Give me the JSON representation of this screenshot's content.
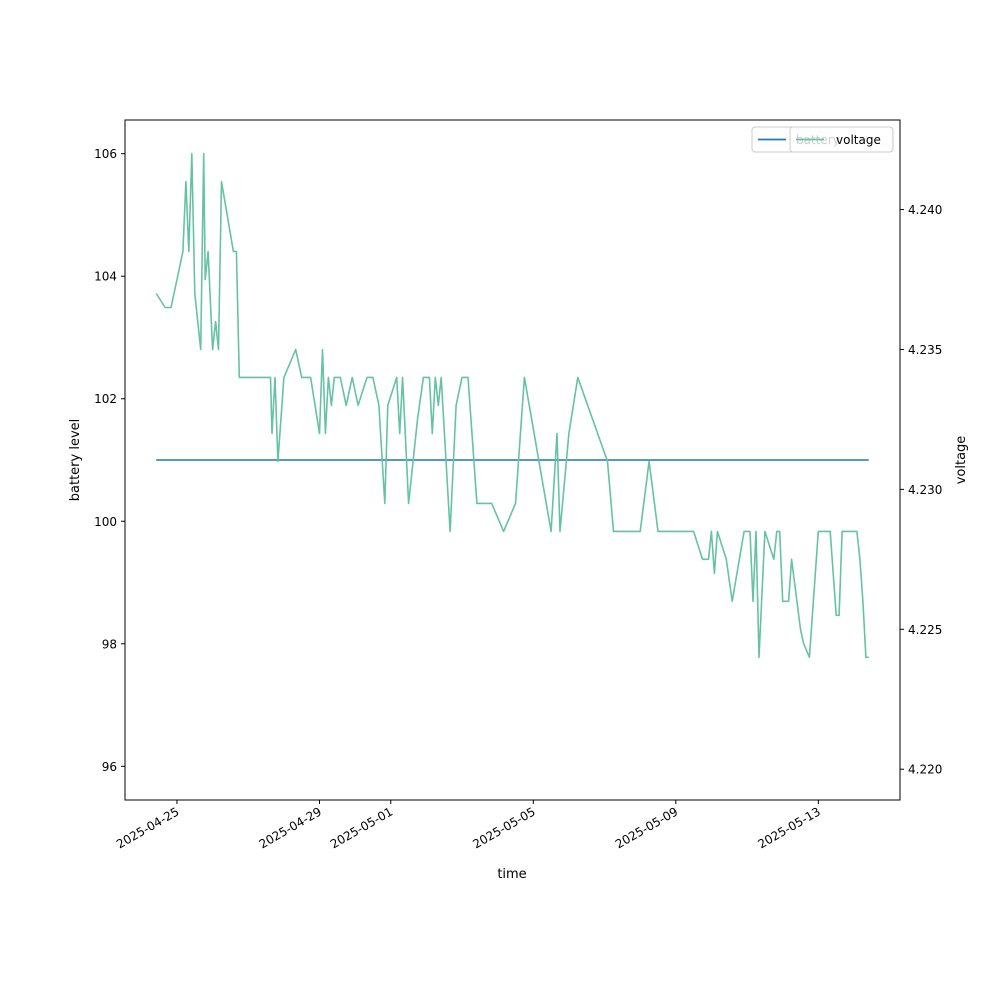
{
  "chart_data": {
    "type": "line",
    "xlabel": "time",
    "ylabel_left": "battery level",
    "ylabel_right": "voltage",
    "x_tick_labels": [
      "2025-04-25",
      "2025-04-29",
      "2025-05-01",
      "2025-05-05",
      "2025-05-09",
      "2025-05-13"
    ],
    "left_y_ticks": [
      96,
      98,
      100,
      102,
      104,
      106
    ],
    "right_y_ticks": [
      "4.220",
      "4.225",
      "4.230",
      "4.235",
      "4.240"
    ],
    "xlim": [
      "2025-04-23T13:00",
      "2025-05-15T07:00"
    ],
    "ylim_left": [
      95.45,
      106.55
    ],
    "ylim_right": [
      4.2189,
      4.2432
    ],
    "legend": [
      "battery",
      "voltage"
    ],
    "legend_position": "top-right",
    "grid": false,
    "series": [
      {
        "name": "battery",
        "axis": "left",
        "color": "#1f77b4",
        "points": [
          [
            "2025-04-24T10:00",
            101.0
          ],
          [
            "2025-05-14T10:00",
            101.0
          ]
        ]
      },
      {
        "name": "voltage",
        "axis": "right",
        "color": "#66c2a5",
        "points": [
          [
            "2025-04-24T10:00",
            4.237
          ],
          [
            "2025-04-24T16:00",
            4.2365
          ],
          [
            "2025-04-24T20:00",
            4.2365
          ],
          [
            "2025-04-25T00:00",
            4.2375
          ],
          [
            "2025-04-25T04:00",
            4.2385
          ],
          [
            "2025-04-25T06:00",
            4.241
          ],
          [
            "2025-04-25T08:00",
            4.2385
          ],
          [
            "2025-04-25T10:00",
            4.242
          ],
          [
            "2025-04-25T12:00",
            4.237
          ],
          [
            "2025-04-25T16:00",
            4.235
          ],
          [
            "2025-04-25T18:00",
            4.242
          ],
          [
            "2025-04-25T19:00",
            4.2375
          ],
          [
            "2025-04-25T21:00",
            4.2385
          ],
          [
            "2025-04-26T00:00",
            4.235
          ],
          [
            "2025-04-26T02:00",
            4.236
          ],
          [
            "2025-04-26T04:00",
            4.235
          ],
          [
            "2025-04-26T06:00",
            4.241
          ],
          [
            "2025-04-26T14:00",
            4.2385
          ],
          [
            "2025-04-26T16:00",
            4.2385
          ],
          [
            "2025-04-26T18:00",
            4.234
          ],
          [
            "2025-04-27T12:00",
            4.234
          ],
          [
            "2025-04-27T15:00",
            4.234
          ],
          [
            "2025-04-27T16:00",
            4.232
          ],
          [
            "2025-04-27T18:00",
            4.234
          ],
          [
            "2025-04-27T20:00",
            4.231
          ],
          [
            "2025-04-28T00:00",
            4.234
          ],
          [
            "2025-04-28T08:00",
            4.235
          ],
          [
            "2025-04-28T12:00",
            4.234
          ],
          [
            "2025-04-28T18:00",
            4.234
          ],
          [
            "2025-04-29T00:00",
            4.232
          ],
          [
            "2025-04-29T02:00",
            4.235
          ],
          [
            "2025-04-29T04:00",
            4.232
          ],
          [
            "2025-04-29T06:00",
            4.234
          ],
          [
            "2025-04-29T08:00",
            4.233
          ],
          [
            "2025-04-29T10:00",
            4.234
          ],
          [
            "2025-04-29T14:00",
            4.234
          ],
          [
            "2025-04-29T18:00",
            4.233
          ],
          [
            "2025-04-29T22:00",
            4.234
          ],
          [
            "2025-04-30T02:00",
            4.233
          ],
          [
            "2025-04-30T08:00",
            4.234
          ],
          [
            "2025-04-30T12:00",
            4.234
          ],
          [
            "2025-04-30T16:00",
            4.233
          ],
          [
            "2025-04-30T20:00",
            4.2295
          ],
          [
            "2025-04-30T22:00",
            4.233
          ],
          [
            "2025-05-01T04:00",
            4.234
          ],
          [
            "2025-05-01T06:00",
            4.232
          ],
          [
            "2025-05-01T08:00",
            4.234
          ],
          [
            "2025-05-01T12:00",
            4.2295
          ],
          [
            "2025-05-01T18:00",
            4.2325
          ],
          [
            "2025-05-01T22:00",
            4.234
          ],
          [
            "2025-05-02T02:00",
            4.234
          ],
          [
            "2025-05-02T04:00",
            4.232
          ],
          [
            "2025-05-02T06:00",
            4.234
          ],
          [
            "2025-05-02T08:00",
            4.233
          ],
          [
            "2025-05-02T10:00",
            4.234
          ],
          [
            "2025-05-02T16:00",
            4.2285
          ],
          [
            "2025-05-02T20:00",
            4.233
          ],
          [
            "2025-05-03T00:00",
            4.234
          ],
          [
            "2025-05-03T04:00",
            4.234
          ],
          [
            "2025-05-03T10:00",
            4.2295
          ],
          [
            "2025-05-03T20:00",
            4.2295
          ],
          [
            "2025-05-04T04:00",
            4.2285
          ],
          [
            "2025-05-04T12:00",
            4.2295
          ],
          [
            "2025-05-04T18:00",
            4.234
          ],
          [
            "2025-05-05T12:00",
            4.2285
          ],
          [
            "2025-05-05T16:00",
            4.232
          ],
          [
            "2025-05-05T18:00",
            4.2285
          ],
          [
            "2025-05-06T00:00",
            4.232
          ],
          [
            "2025-05-06T06:00",
            4.234
          ],
          [
            "2025-05-07T02:00",
            4.231
          ],
          [
            "2025-05-07T06:00",
            4.2285
          ],
          [
            "2025-05-07T12:00",
            4.2285
          ],
          [
            "2025-05-08T00:00",
            4.2285
          ],
          [
            "2025-05-08T06:00",
            4.231
          ],
          [
            "2025-05-08T12:00",
            4.2285
          ],
          [
            "2025-05-08T18:00",
            4.2285
          ],
          [
            "2025-05-09T12:00",
            4.2285
          ],
          [
            "2025-05-09T18:00",
            4.2275
          ],
          [
            "2025-05-09T22:00",
            4.2275
          ],
          [
            "2025-05-10T00:00",
            4.2285
          ],
          [
            "2025-05-10T02:00",
            4.227
          ],
          [
            "2025-05-10T04:00",
            4.2285
          ],
          [
            "2025-05-10T10:00",
            4.2275
          ],
          [
            "2025-05-10T14:00",
            4.226
          ],
          [
            "2025-05-10T22:00",
            4.2285
          ],
          [
            "2025-05-11T02:00",
            4.2285
          ],
          [
            "2025-05-11T04:00",
            4.226
          ],
          [
            "2025-05-11T06:00",
            4.2285
          ],
          [
            "2025-05-11T08:00",
            4.224
          ],
          [
            "2025-05-11T12:00",
            4.2285
          ],
          [
            "2025-05-11T18:00",
            4.2275
          ],
          [
            "2025-05-11T20:00",
            4.2285
          ],
          [
            "2025-05-11T22:00",
            4.2285
          ],
          [
            "2025-05-12T00:00",
            4.226
          ],
          [
            "2025-05-12T04:00",
            4.226
          ],
          [
            "2025-05-12T06:00",
            4.2275
          ],
          [
            "2025-05-12T12:00",
            4.225
          ],
          [
            "2025-05-12T14:00",
            4.2245
          ],
          [
            "2025-05-12T18:00",
            4.224
          ],
          [
            "2025-05-13T00:00",
            4.2285
          ],
          [
            "2025-05-13T02:00",
            4.2285
          ],
          [
            "2025-05-13T04:00",
            4.2285
          ],
          [
            "2025-05-13T08:00",
            4.2285
          ],
          [
            "2025-05-13T12:00",
            4.2255
          ],
          [
            "2025-05-13T14:00",
            4.2255
          ],
          [
            "2025-05-13T16:00",
            4.2285
          ],
          [
            "2025-05-13T20:00",
            4.2285
          ],
          [
            "2025-05-13T22:00",
            4.2285
          ],
          [
            "2025-05-14T02:00",
            4.2285
          ],
          [
            "2025-05-14T04:00",
            4.2275
          ],
          [
            "2025-05-14T06:00",
            4.226
          ],
          [
            "2025-05-14T08:00",
            4.224
          ],
          [
            "2025-05-14T10:00",
            4.224
          ]
        ]
      }
    ]
  }
}
